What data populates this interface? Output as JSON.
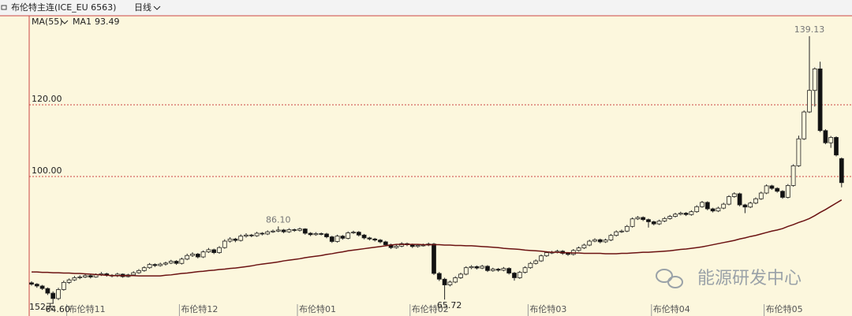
{
  "header": {
    "symbol": "布伦特主连(ICE_EU 6563)",
    "period": "日线"
  },
  "watermark": "能源研发中心",
  "chart_data": {
    "type": "candlestick",
    "indicator": "MA(55)",
    "period_label": "152天",
    "ylim": [
      61.8,
      144.8
    ],
    "yticks": [
      {
        "value": 100,
        "label": "100.00"
      },
      {
        "value": 120,
        "label": "120.00"
      }
    ],
    "grid": true,
    "up_color": "#fcf7dd",
    "down_color": "#111111",
    "edge_color": "#222222",
    "categories": [
      null,
      null,
      null,
      null,
      null,
      null,
      null,
      "布伦特11",
      null,
      null,
      null,
      null,
      null,
      null,
      null,
      null,
      null,
      null,
      null,
      null,
      null,
      null,
      null,
      null,
      null,
      null,
      null,
      null,
      "布伦特12",
      null,
      null,
      null,
      null,
      null,
      null,
      null,
      null,
      null,
      null,
      null,
      null,
      null,
      null,
      null,
      null,
      null,
      null,
      null,
      null,
      null,
      "布伦特01",
      null,
      null,
      null,
      null,
      null,
      null,
      null,
      null,
      null,
      null,
      null,
      null,
      null,
      null,
      null,
      null,
      null,
      null,
      null,
      null,
      "布伦特02",
      null,
      null,
      null,
      null,
      null,
      null,
      null,
      null,
      null,
      null,
      null,
      null,
      null,
      null,
      null,
      null,
      null,
      null,
      null,
      null,
      null,
      "布伦特03",
      null,
      null,
      null,
      null,
      null,
      null,
      null,
      null,
      null,
      null,
      null,
      null,
      null,
      null,
      null,
      null,
      null,
      null,
      null,
      null,
      null,
      null,
      "布伦特04",
      null,
      null,
      null,
      null,
      null,
      null,
      null,
      null,
      null,
      null,
      null,
      null,
      null,
      null,
      null,
      null,
      null,
      null,
      null,
      null,
      "布伦特05",
      null,
      null,
      null,
      null,
      null,
      null,
      null,
      null,
      null,
      null,
      null,
      null,
      null,
      null
    ],
    "ohlc": [
      [
        70.4,
        70.8,
        69.6,
        70.0
      ],
      [
        70.0,
        70.3,
        69.0,
        69.5
      ],
      [
        69.5,
        69.8,
        68.4,
        68.8
      ],
      [
        68.8,
        69.1,
        67.0,
        67.5
      ],
      [
        67.5,
        68.0,
        64.6,
        66.0
      ],
      [
        66.0,
        69.0,
        65.6,
        68.5
      ],
      [
        68.5,
        71.0,
        68.2,
        70.5
      ],
      [
        70.5,
        71.6,
        70.1,
        71.2
      ],
      [
        71.2,
        72.3,
        70.9,
        71.8
      ],
      [
        71.8,
        72.5,
        71.4,
        72.0
      ],
      [
        72.0,
        72.8,
        71.7,
        72.4
      ],
      [
        72.4,
        72.7,
        71.6,
        72.0
      ],
      [
        72.0,
        73.0,
        71.8,
        72.6
      ],
      [
        72.6,
        73.4,
        72.3,
        72.9
      ],
      [
        72.9,
        73.2,
        72.1,
        72.5
      ],
      [
        72.5,
        72.8,
        71.9,
        72.3
      ],
      [
        72.3,
        73.2,
        72.0,
        72.8
      ],
      [
        72.8,
        73.0,
        71.8,
        72.1
      ],
      [
        72.1,
        72.9,
        71.9,
        72.6
      ],
      [
        72.6,
        73.6,
        72.3,
        73.2
      ],
      [
        73.2,
        74.2,
        72.9,
        73.8
      ],
      [
        73.8,
        75.0,
        73.5,
        74.6
      ],
      [
        74.6,
        75.9,
        74.3,
        75.5
      ],
      [
        75.5,
        75.8,
        74.8,
        75.2
      ],
      [
        75.2,
        76.0,
        74.9,
        75.6
      ],
      [
        75.6,
        76.3,
        75.2,
        75.9
      ],
      [
        75.9,
        76.8,
        75.6,
        76.4
      ],
      [
        76.4,
        76.7,
        75.4,
        75.8
      ],
      [
        75.8,
        77.4,
        75.5,
        77.0
      ],
      [
        77.0,
        78.5,
        76.7,
        78.0
      ],
      [
        78.0,
        78.9,
        77.6,
        78.4
      ],
      [
        78.4,
        78.7,
        77.2,
        77.6
      ],
      [
        77.6,
        79.4,
        77.3,
        79.0
      ],
      [
        79.0,
        80.1,
        78.7,
        79.6
      ],
      [
        79.6,
        79.9,
        78.4,
        78.8
      ],
      [
        78.8,
        80.6,
        78.5,
        80.2
      ],
      [
        80.2,
        82.5,
        79.9,
        82.0
      ],
      [
        82.0,
        83.1,
        81.6,
        82.6
      ],
      [
        82.6,
        82.9,
        81.7,
        82.2
      ],
      [
        82.2,
        83.9,
        81.9,
        83.4
      ],
      [
        83.4,
        84.2,
        83.0,
        83.7
      ],
      [
        83.7,
        84.0,
        83.1,
        83.5
      ],
      [
        83.5,
        84.6,
        83.2,
        84.2
      ],
      [
        84.2,
        84.5,
        83.6,
        84.0
      ],
      [
        84.0,
        85.0,
        83.7,
        84.6
      ],
      [
        84.6,
        85.2,
        84.3,
        84.8
      ],
      [
        84.8,
        86.1,
        84.5,
        85.1
      ],
      [
        85.1,
        85.4,
        84.2,
        84.6
      ],
      [
        84.6,
        85.6,
        84.3,
        85.2
      ],
      [
        85.2,
        85.5,
        84.6,
        85.0
      ],
      [
        85.0,
        85.8,
        84.7,
        85.4
      ],
      [
        85.4,
        85.6,
        83.8,
        84.2
      ],
      [
        84.2,
        84.5,
        83.4,
        83.8
      ],
      [
        83.8,
        84.5,
        83.5,
        84.1
      ],
      [
        84.1,
        84.4,
        83.6,
        84.0
      ],
      [
        84.0,
        84.3,
        82.8,
        83.2
      ],
      [
        83.2,
        83.5,
        81.5,
        81.9
      ],
      [
        81.9,
        83.8,
        81.6,
        83.4
      ],
      [
        83.4,
        83.7,
        82.4,
        82.8
      ],
      [
        82.8,
        84.7,
        82.5,
        84.3
      ],
      [
        84.3,
        84.9,
        84.0,
        84.5
      ],
      [
        84.5,
        84.8,
        83.3,
        83.7
      ],
      [
        83.7,
        84.0,
        82.5,
        82.9
      ],
      [
        82.9,
        83.2,
        82.2,
        82.6
      ],
      [
        82.6,
        82.9,
        81.9,
        82.3
      ],
      [
        82.3,
        82.6,
        81.4,
        81.8
      ],
      [
        81.8,
        82.1,
        80.6,
        81.0
      ],
      [
        81.0,
        81.3,
        79.8,
        80.2
      ],
      [
        80.2,
        81.0,
        79.9,
        80.6
      ],
      [
        80.6,
        81.7,
        80.3,
        81.3
      ],
      [
        81.3,
        81.6,
        80.6,
        81.0
      ],
      [
        81.0,
        81.3,
        80.1,
        80.5
      ],
      [
        80.5,
        81.2,
        80.2,
        80.8
      ],
      [
        80.8,
        81.3,
        80.5,
        80.9
      ],
      [
        80.9,
        81.6,
        80.6,
        81.2
      ],
      [
        81.2,
        81.5,
        72.6,
        73.0
      ],
      [
        73.0,
        73.4,
        70.9,
        71.4
      ],
      [
        71.4,
        71.8,
        65.72,
        69.8
      ],
      [
        69.8,
        71.0,
        69.4,
        70.6
      ],
      [
        70.6,
        72.2,
        70.3,
        71.8
      ],
      [
        71.8,
        73.2,
        71.5,
        72.8
      ],
      [
        72.8,
        75.0,
        72.5,
        74.6
      ],
      [
        74.6,
        75.3,
        74.2,
        74.9
      ],
      [
        74.9,
        75.2,
        74.1,
        74.5
      ],
      [
        74.5,
        75.4,
        74.2,
        75.0
      ],
      [
        75.0,
        75.3,
        73.4,
        73.8
      ],
      [
        73.8,
        74.6,
        73.5,
        74.2
      ],
      [
        74.2,
        74.5,
        73.5,
        73.9
      ],
      [
        73.9,
        74.8,
        73.6,
        74.4
      ],
      [
        74.4,
        74.7,
        72.7,
        73.1
      ],
      [
        73.1,
        73.4,
        71.0,
        71.8
      ],
      [
        71.8,
        73.7,
        71.5,
        73.3
      ],
      [
        73.3,
        75.0,
        73.0,
        74.6
      ],
      [
        74.6,
        76.2,
        74.3,
        75.8
      ],
      [
        75.8,
        76.9,
        75.5,
        76.5
      ],
      [
        76.5,
        78.3,
        76.2,
        77.9
      ],
      [
        77.9,
        79.2,
        77.6,
        78.8
      ],
      [
        78.8,
        79.3,
        78.4,
        78.9
      ],
      [
        78.9,
        79.6,
        78.6,
        79.2
      ],
      [
        79.2,
        79.5,
        78.2,
        78.6
      ],
      [
        78.6,
        78.9,
        77.9,
        78.3
      ],
      [
        78.3,
        79.8,
        78.0,
        79.4
      ],
      [
        79.4,
        80.5,
        79.1,
        80.1
      ],
      [
        80.1,
        81.3,
        79.8,
        80.9
      ],
      [
        80.9,
        82.4,
        80.6,
        82.0
      ],
      [
        82.0,
        82.8,
        81.7,
        82.4
      ],
      [
        82.4,
        82.7,
        81.4,
        81.8
      ],
      [
        81.8,
        82.7,
        81.5,
        82.3
      ],
      [
        82.3,
        84.0,
        82.0,
        83.6
      ],
      [
        83.6,
        85.0,
        83.3,
        84.6
      ],
      [
        84.6,
        85.2,
        84.3,
        84.8
      ],
      [
        84.8,
        86.5,
        84.5,
        86.1
      ],
      [
        86.1,
        88.6,
        85.8,
        88.2
      ],
      [
        88.2,
        89.0,
        87.9,
        88.6
      ],
      [
        88.6,
        88.9,
        87.6,
        88.0
      ],
      [
        88.0,
        88.3,
        85.8,
        87.4
      ],
      [
        87.4,
        87.7,
        86.4,
        86.8
      ],
      [
        86.8,
        88.0,
        86.5,
        87.6
      ],
      [
        87.6,
        88.7,
        87.3,
        88.3
      ],
      [
        88.3,
        89.3,
        88.0,
        88.9
      ],
      [
        88.9,
        89.9,
        88.6,
        89.5
      ],
      [
        89.5,
        90.2,
        89.2,
        89.8
      ],
      [
        89.8,
        90.1,
        89.0,
        89.4
      ],
      [
        89.4,
        90.6,
        89.1,
        90.2
      ],
      [
        90.2,
        92.0,
        89.9,
        91.6
      ],
      [
        91.6,
        93.2,
        91.3,
        92.8
      ],
      [
        92.8,
        93.1,
        90.6,
        91.0
      ],
      [
        91.0,
        91.3,
        90.0,
        90.4
      ],
      [
        90.4,
        91.6,
        90.1,
        91.2
      ],
      [
        91.2,
        92.7,
        90.9,
        92.3
      ],
      [
        92.3,
        94.8,
        92.0,
        94.4
      ],
      [
        94.4,
        95.6,
        94.1,
        95.2
      ],
      [
        95.2,
        95.5,
        91.7,
        92.1
      ],
      [
        92.1,
        92.4,
        89.8,
        91.5
      ],
      [
        91.5,
        93.0,
        91.2,
        92.6
      ],
      [
        92.6,
        94.2,
        92.3,
        93.8
      ],
      [
        93.8,
        95.8,
        93.5,
        95.4
      ],
      [
        95.4,
        97.8,
        95.1,
        97.4
      ],
      [
        97.4,
        97.7,
        96.3,
        96.7
      ],
      [
        96.7,
        97.0,
        95.5,
        95.9
      ],
      [
        95.9,
        96.2,
        93.8,
        94.2
      ],
      [
        94.2,
        97.9,
        93.9,
        97.5
      ],
      [
        97.5,
        103.4,
        97.2,
        103.0
      ],
      [
        103.0,
        111.4,
        102.7,
        110.5
      ],
      [
        110.5,
        118.4,
        110.2,
        118.0
      ],
      [
        118.0,
        139.13,
        117.7,
        124.0
      ],
      [
        124.0,
        130.4,
        119.5,
        130.0
      ],
      [
        130.0,
        132.0,
        112.4,
        112.8
      ],
      [
        112.8,
        113.2,
        109.0,
        109.4
      ],
      [
        109.4,
        111.3,
        108.0,
        110.9
      ],
      [
        110.9,
        111.2,
        105.6,
        106.0
      ],
      [
        105.0,
        105.3,
        97.0,
        98.3
      ]
    ],
    "annotations": [
      {
        "index": 145,
        "field": 1,
        "label": "139.13"
      },
      {
        "index": 46,
        "field": 1,
        "label": "86.10"
      },
      {
        "index": 77,
        "field": 2,
        "label": "65.72"
      },
      {
        "index": 4,
        "field": 2,
        "label": "64.60"
      }
    ],
    "ma": {
      "name": "MA1",
      "color": "#6b1212",
      "values": [
        73.4,
        73.4,
        73.3,
        73.3,
        73.2,
        73.2,
        73.1,
        73.1,
        73.0,
        73.0,
        72.9,
        72.8,
        72.7,
        72.6,
        72.5,
        72.4,
        72.4,
        72.4,
        72.4,
        72.4,
        72.3,
        72.3,
        72.3,
        72.3,
        72.3,
        72.5,
        72.6,
        72.8,
        73.0,
        73.1,
        73.3,
        73.5,
        73.6,
        73.8,
        73.9,
        74.1,
        74.2,
        74.4,
        74.5,
        74.7,
        74.9,
        75.1,
        75.4,
        75.6,
        75.8,
        76.0,
        76.2,
        76.5,
        76.7,
        76.9,
        77.1,
        77.4,
        77.6,
        77.8,
        78.0,
        78.3,
        78.5,
        78.8,
        79.0,
        79.3,
        79.5,
        79.7,
        79.9,
        80.1,
        80.3,
        80.5,
        80.7,
        80.9,
        81.1,
        81.1,
        81.1,
        81.1,
        81.1,
        81.0,
        81.0,
        81.0,
        81.0,
        80.9,
        80.9,
        80.8,
        80.8,
        80.7,
        80.7,
        80.6,
        80.5,
        80.4,
        80.3,
        80.2,
        80.0,
        79.9,
        79.8,
        79.7,
        79.5,
        79.4,
        79.3,
        79.2,
        79.0,
        78.9,
        78.9,
        78.8,
        78.8,
        78.7,
        78.7,
        78.6,
        78.6,
        78.6,
        78.6,
        78.5,
        78.5,
        78.5,
        78.6,
        78.6,
        78.7,
        78.8,
        78.9,
        78.9,
        79.0,
        79.1,
        79.2,
        79.3,
        79.5,
        79.7,
        79.8,
        80.0,
        80.2,
        80.4,
        80.7,
        81.0,
        81.3,
        81.6,
        81.9,
        82.2,
        82.6,
        82.9,
        83.3,
        83.6,
        84.0,
        84.4,
        84.8,
        85.1,
        85.5,
        86.1,
        86.6,
        87.2,
        87.7,
        88.3,
        89.1,
        90.0,
        90.8,
        91.7,
        92.6,
        93.49
      ]
    }
  }
}
